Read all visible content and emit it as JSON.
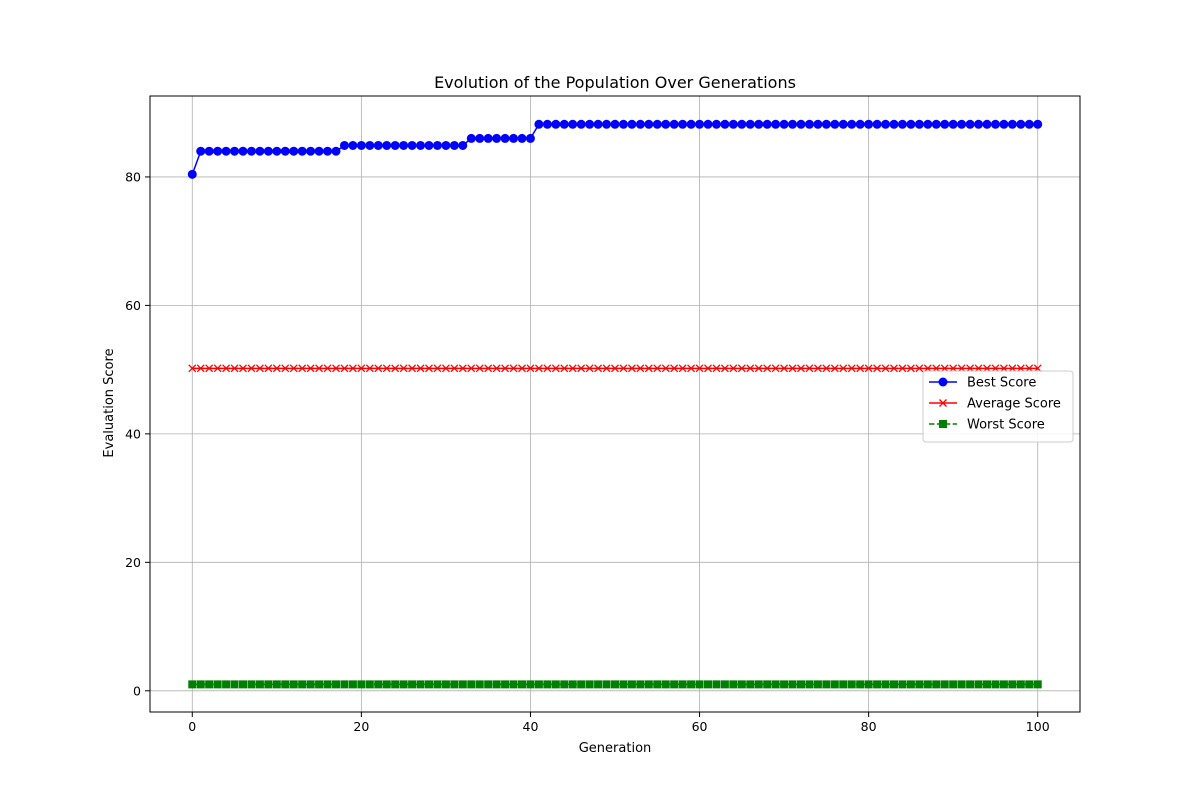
{
  "chart_data": {
    "type": "line",
    "title": "Evolution of the Population Over Generations",
    "xlabel": "Generation",
    "ylabel": "Evaluation Score",
    "xlim": [
      -5,
      105
    ],
    "ylim": [
      -3.3,
      92.6
    ],
    "xticks": [
      0,
      20,
      40,
      60,
      80,
      100
    ],
    "yticks": [
      0,
      20,
      40,
      60,
      80
    ],
    "grid": true,
    "legend_position": "center-right",
    "x": {
      "start": 0,
      "end": 100,
      "step": 1
    },
    "series": [
      {
        "name": "Best Score",
        "color": "#0000ff",
        "marker": "circle",
        "linestyle": "solid",
        "segments": [
          {
            "from": 0,
            "to": 0,
            "value": 80.4
          },
          {
            "from": 1,
            "to": 17,
            "value": 84.0
          },
          {
            "from": 18,
            "to": 32,
            "value": 84.9
          },
          {
            "from": 33,
            "to": 40,
            "value": 86.0
          },
          {
            "from": 41,
            "to": 100,
            "value": 88.2
          }
        ]
      },
      {
        "name": "Average Score",
        "color": "#ff0000",
        "marker": "x",
        "linestyle": "solid",
        "segments": [
          {
            "from": 0,
            "to": 100,
            "value": 50.2
          }
        ]
      },
      {
        "name": "Worst Score",
        "color": "#008000",
        "marker": "square",
        "linestyle": "dashed",
        "segments": [
          {
            "from": 0,
            "to": 100,
            "value": 1.0
          }
        ]
      }
    ]
  }
}
